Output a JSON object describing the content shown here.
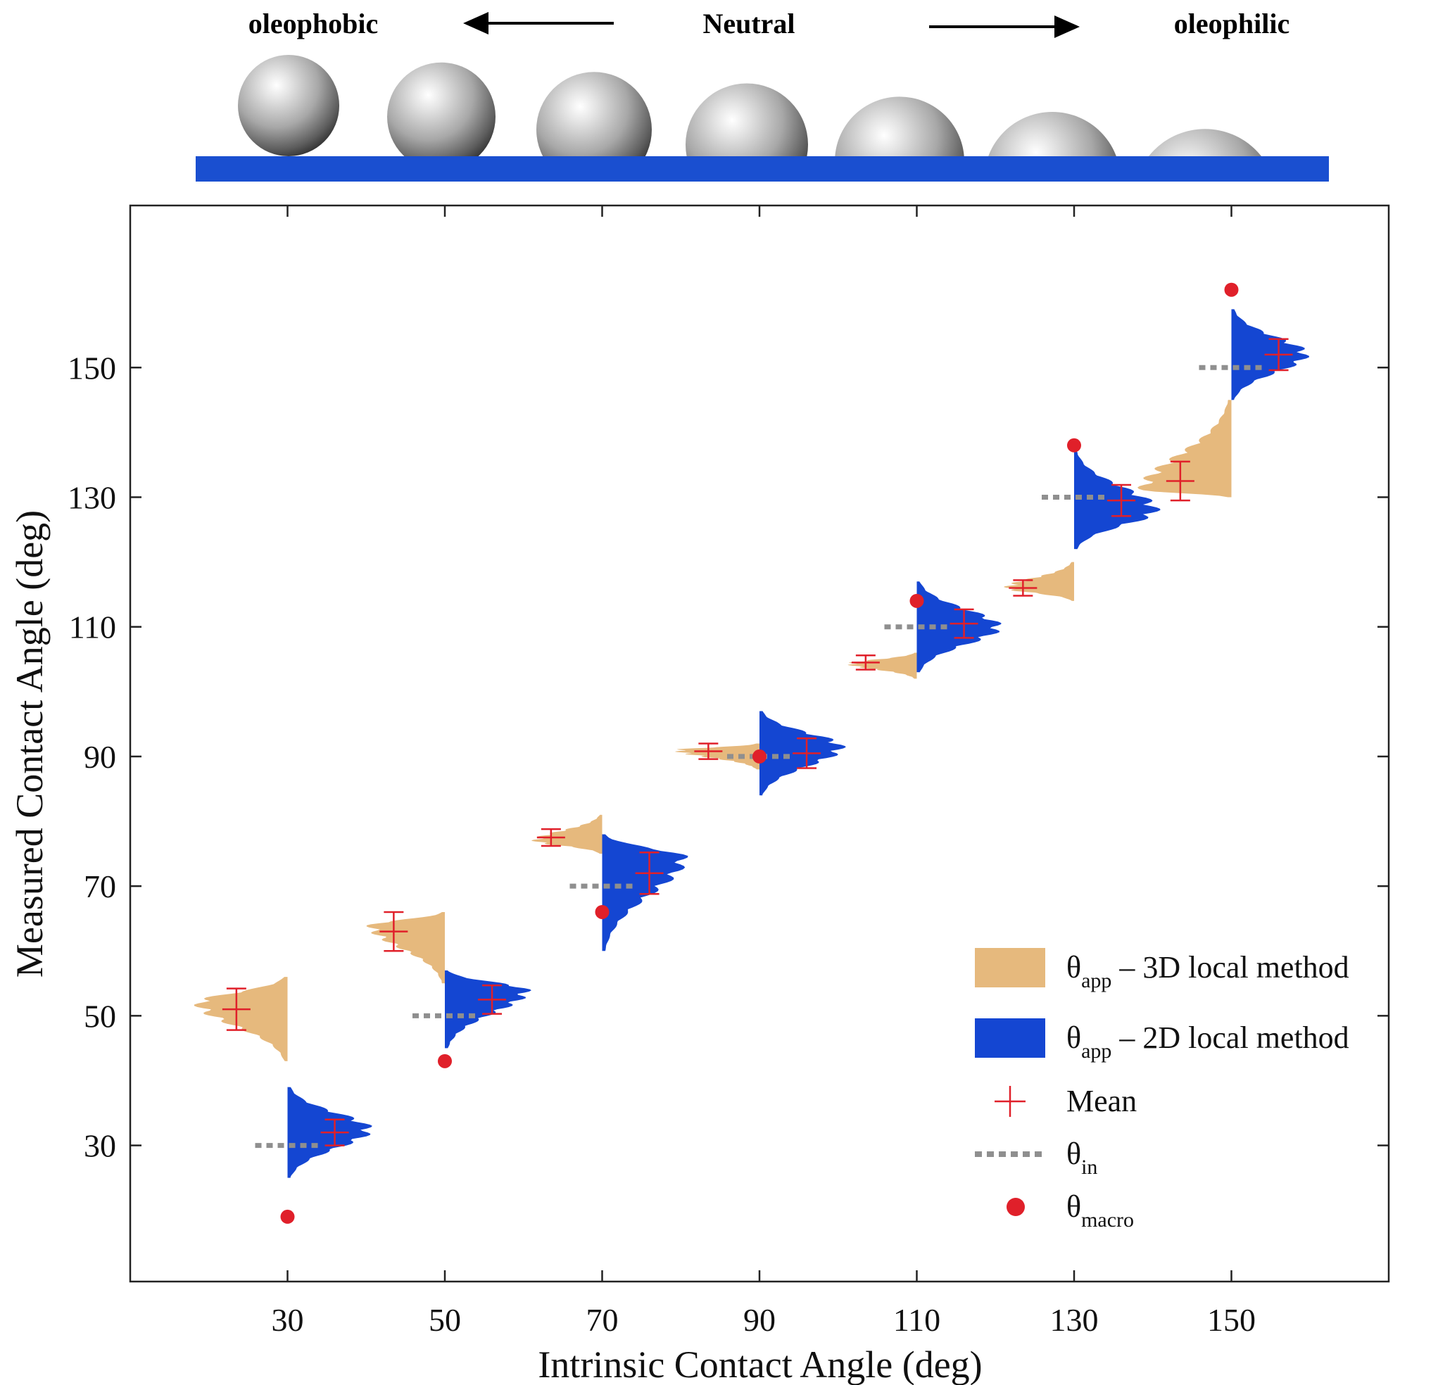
{
  "header": {
    "left_label": "oleophobic",
    "center_label": "Neutral",
    "right_label": "oleophilic",
    "droplet_count": 7
  },
  "colors": {
    "app3d": "#e6b97d",
    "app2d": "#1446d2",
    "mean": "#e0202a",
    "theta_in": "#8f8f8f",
    "macro": "#e0202a",
    "substrate": "#1a4fd0"
  },
  "chart_data": {
    "type": "scatter",
    "xlabel": "Intrinsic Contact Angle (deg)",
    "ylabel": "Measured Contact Angle (deg)",
    "xlim": [
      10,
      170
    ],
    "ylim": [
      9,
      175
    ],
    "xticks": [
      30,
      50,
      70,
      90,
      110,
      130,
      150
    ],
    "yticks": [
      30,
      50,
      70,
      90,
      110,
      130,
      150
    ],
    "legend": {
      "position": "bottom-right",
      "entries": [
        {
          "key": "app3d",
          "symbol": "θ",
          "sub": "app",
          "text": " – 3D local method"
        },
        {
          "key": "app2d",
          "symbol": "θ",
          "sub": "app",
          "text": " – 2D local method"
        },
        {
          "key": "mean",
          "symbol": "",
          "sub": "",
          "text": "Mean"
        },
        {
          "key": "in",
          "symbol": "θ",
          "sub": "in",
          "text": ""
        },
        {
          "key": "macro",
          "symbol": "θ",
          "sub": "macro",
          "text": ""
        }
      ]
    },
    "cases": [
      {
        "theta_in": 30,
        "theta_macro": 19,
        "app3d": {
          "mean": 51,
          "err": 3.2,
          "min": 43,
          "max": 56,
          "peak": 52,
          "width": 12
        },
        "app2d": {
          "mean": 32,
          "err": 2.0,
          "min": 25,
          "max": 39,
          "peak": 32.5,
          "width": 11
        }
      },
      {
        "theta_in": 50,
        "theta_macro": 43,
        "app3d": {
          "mean": 63,
          "err": 3.0,
          "min": 55,
          "max": 66,
          "peak": 64,
          "width": 10
        },
        "app2d": {
          "mean": 52.5,
          "err": 2.2,
          "min": 45,
          "max": 57,
          "peak": 54,
          "width": 11
        }
      },
      {
        "theta_in": 70,
        "theta_macro": 66,
        "app3d": {
          "mean": 77.5,
          "err": 1.3,
          "min": 75,
          "max": 81,
          "peak": 77,
          "width": 9
        },
        "app2d": {
          "mean": 72,
          "err": 3.2,
          "min": 60,
          "max": 78,
          "peak": 74.5,
          "width": 11
        }
      },
      {
        "theta_in": 90,
        "theta_macro": 90,
        "app3d": {
          "mean": 90.8,
          "err": 1.2,
          "min": 88,
          "max": 92,
          "peak": 91,
          "width": 11
        },
        "app2d": {
          "mean": 90.5,
          "err": 2.3,
          "min": 84,
          "max": 97,
          "peak": 91.5,
          "width": 11
        }
      },
      {
        "theta_in": 110,
        "theta_macro": 114,
        "app3d": {
          "mean": 104.5,
          "err": 1.1,
          "min": 102,
          "max": 106,
          "peak": 104.3,
          "width": 9
        },
        "app2d": {
          "mean": 110.5,
          "err": 2.2,
          "min": 103,
          "max": 117,
          "peak": 110,
          "width": 11
        }
      },
      {
        "theta_in": 130,
        "theta_macro": 138,
        "app3d": {
          "mean": 116,
          "err": 1.2,
          "min": 114,
          "max": 120,
          "peak": 116,
          "width": 9
        },
        "app2d": {
          "mean": 129.5,
          "err": 2.4,
          "min": 122,
          "max": 137,
          "peak": 128,
          "width": 11
        }
      },
      {
        "theta_in": 150,
        "theta_macro": 162,
        "app3d": {
          "mean": 132.5,
          "err": 3.0,
          "min": 130,
          "max": 145,
          "peak": 131,
          "width": 12
        },
        "app2d": {
          "mean": 152,
          "err": 2.4,
          "min": 145,
          "max": 159,
          "peak": 152,
          "width": 10
        }
      }
    ]
  }
}
